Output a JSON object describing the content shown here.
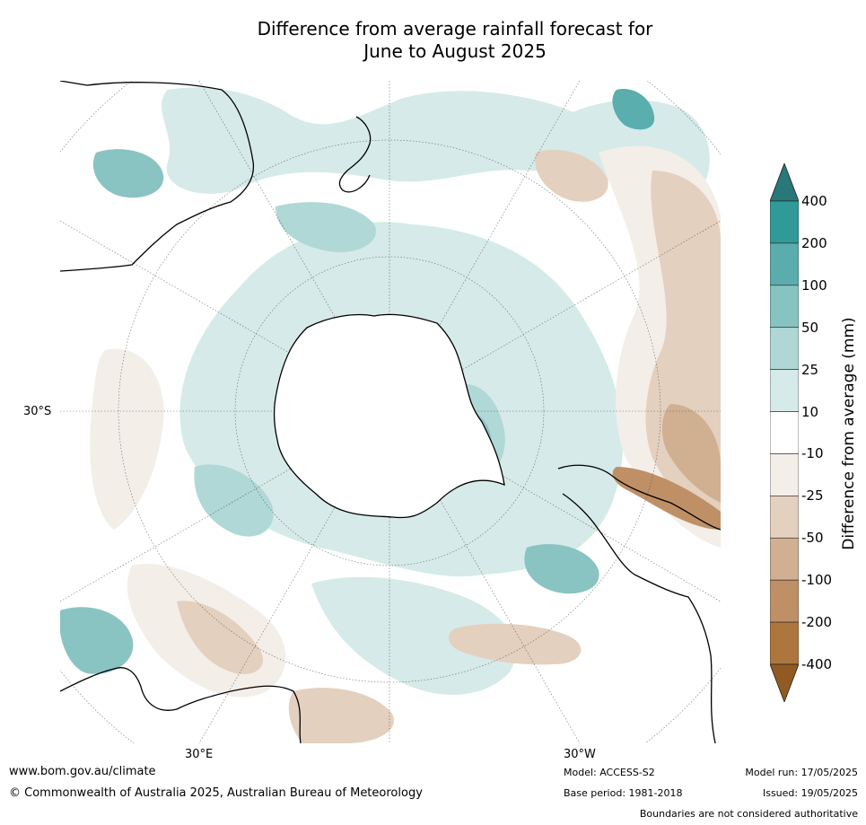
{
  "title": {
    "line1": "Difference from average rainfall forecast for",
    "line2": "June to August 2025"
  },
  "map": {
    "projection": "south polar stereographic",
    "lat_label": "30°S",
    "lon_labels": {
      "east": "30°E",
      "west": "30°W"
    },
    "colors": {
      "pos_400": "#28787a",
      "pos_200": "#319c9b",
      "pos_100": "#5aaead",
      "pos_50": "#89c4c2",
      "pos_25": "#b0d8d6",
      "pos_10": "#d6eae9",
      "neutral": "#ffffff",
      "neg_10": "#f3eee8",
      "neg_25": "#e4d0be",
      "neg_50": "#d0b091",
      "neg_100": "#bf9066",
      "neg_200": "#ad753f",
      "neg_400": "#905a22"
    }
  },
  "colorbar": {
    "title": "Difference from average (mm)",
    "levels": [
      "400",
      "200",
      "100",
      "50",
      "25",
      "10",
      "-10",
      "-25",
      "-50",
      "-100",
      "-200",
      "-400"
    ],
    "bands": [
      "#309a99",
      "#5aadac",
      "#86c3c1",
      "#aed7d5",
      "#d6eae9",
      "#ffffff",
      "#f3eee8",
      "#e4d0be",
      "#d0b091",
      "#bf9066",
      "#ae763f"
    ],
    "over_color": "#28787a",
    "under_color": "#905a22"
  },
  "footer": {
    "website": "www.bom.gov.au/climate",
    "copyright": "© Commonwealth of Australia 2025, Australian Bureau of Meteorology",
    "model": "Model: ACCESS-S2",
    "base_period": "Base period: 1981-2018",
    "model_run": "Model run: 17/05/2025",
    "issued": "Issued: 19/05/2025",
    "disclaimer": "Boundaries are not considered authoritative"
  }
}
